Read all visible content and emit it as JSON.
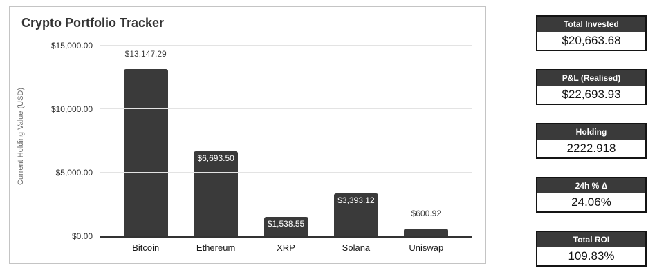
{
  "chart_data": {
    "type": "bar",
    "title": "Crypto Portfolio Tracker",
    "ylabel": "Current Holding Value (USD)",
    "xlabel": "",
    "categories": [
      "Bitcoin",
      "Ethereum",
      "XRP",
      "Solana",
      "Uniswap"
    ],
    "values": [
      13147.29,
      6693.5,
      1538.55,
      3393.12,
      600.92
    ],
    "data_labels": [
      "$13,147.29",
      "$6,693.50",
      "$1,538.55",
      "$3,393.12",
      "$600.92"
    ],
    "label_placement": [
      "outside",
      "inside",
      "inside",
      "inside",
      "outside"
    ],
    "yticks": [
      {
        "label": "$0.00",
        "value": 0
      },
      {
        "label": "$5,000.00",
        "value": 5000
      },
      {
        "label": "$10,000.00",
        "value": 10000
      },
      {
        "label": "$15,000.00",
        "value": 15000
      }
    ],
    "ylim": [
      0,
      15000
    ],
    "grid": true,
    "legend": "none"
  },
  "cards": [
    {
      "key": "total-invested",
      "label": "Total Invested",
      "value": "$20,663.68"
    },
    {
      "key": "pnl-realised",
      "label": "P&L (Realised)",
      "value": "$22,693.93"
    },
    {
      "key": "holding",
      "label": "Holding",
      "value": "2222.918"
    },
    {
      "key": "24h-pct-change",
      "label": "24h % Δ",
      "value": "24.06%"
    },
    {
      "key": "total-roi",
      "label": "Total ROI",
      "value": "109.83%"
    }
  ],
  "colors": {
    "bar": "#3a3a3a",
    "card_header_bg": "#3a3a3a",
    "card_header_text": "#ffffff",
    "grid_line": "#e3e3e3",
    "axis_line": "#333333",
    "panel_border": "#c4c4c4"
  }
}
